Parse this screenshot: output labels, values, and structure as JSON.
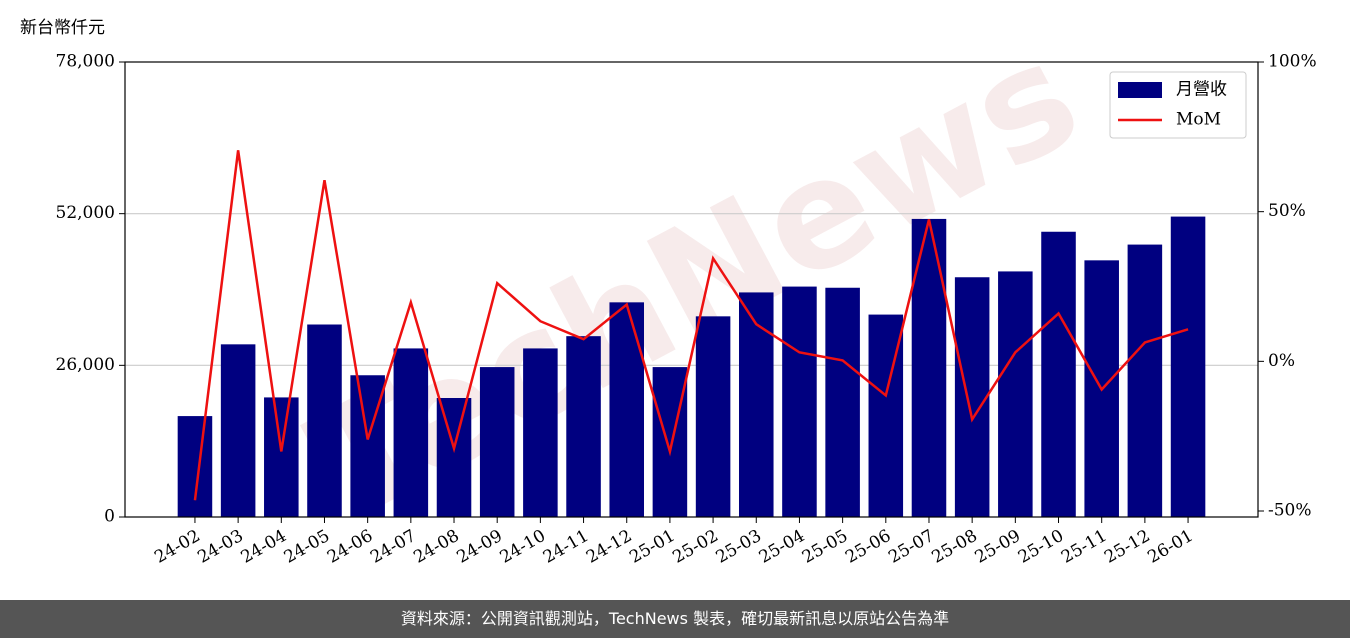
{
  "chart_data": {
    "type": "bar-line",
    "y_label": "新台幣仟元",
    "watermark": "TechNews",
    "footer": "資料來源：公開資訊觀測站，TechNews 製表，確切最新訊息以原站公告為準",
    "categories": [
      "24-02",
      "24-03",
      "24-04",
      "24-05",
      "24-06",
      "24-07",
      "24-08",
      "24-09",
      "24-10",
      "24-11",
      "24-12",
      "25-01",
      "25-02",
      "25-03",
      "25-04",
      "25-05",
      "25-06",
      "25-07",
      "25-08",
      "25-09",
      "25-10",
      "25-11",
      "25-12",
      "26-01"
    ],
    "series": [
      {
        "name": "月營收",
        "type": "bar",
        "color": "#000080",
        "values": [
          17300,
          29600,
          20500,
          33000,
          24300,
          28900,
          20400,
          25700,
          28900,
          31000,
          36800,
          25700,
          34400,
          38500,
          39500,
          39300,
          34700,
          51100,
          41100,
          42100,
          48900,
          44000,
          46700,
          51500
        ]
      },
      {
        "name": "MoM",
        "type": "line",
        "axis": "y2",
        "color": "#ee1111",
        "values": [
          -46.4,
          70.5,
          -30.1,
          60.5,
          -26.1,
          19.7,
          -29.1,
          26.1,
          13.4,
          7.4,
          19.0,
          -30.1,
          34.4,
          12.4,
          3.0,
          0.3,
          -11.4,
          47.4,
          -19.4,
          3.0,
          16.0,
          -9.4,
          6.3,
          10.7
        ]
      }
    ],
    "ylim": [
      0,
      78000
    ],
    "yticks": [
      {
        "value": 0,
        "label": "0"
      },
      {
        "value": 26000,
        "label": "26,000"
      },
      {
        "value": 52000,
        "label": "52,000"
      },
      {
        "value": 78000,
        "label": "78,000"
      }
    ],
    "y2lim": [
      -52,
      100
    ],
    "y2ticks": [
      {
        "value": -50,
        "label": "-50%"
      },
      {
        "value": 0,
        "label": "0%"
      },
      {
        "value": 50,
        "label": "50%"
      },
      {
        "value": 100,
        "label": "100%"
      }
    ],
    "grid": true,
    "legend": "upper right"
  }
}
